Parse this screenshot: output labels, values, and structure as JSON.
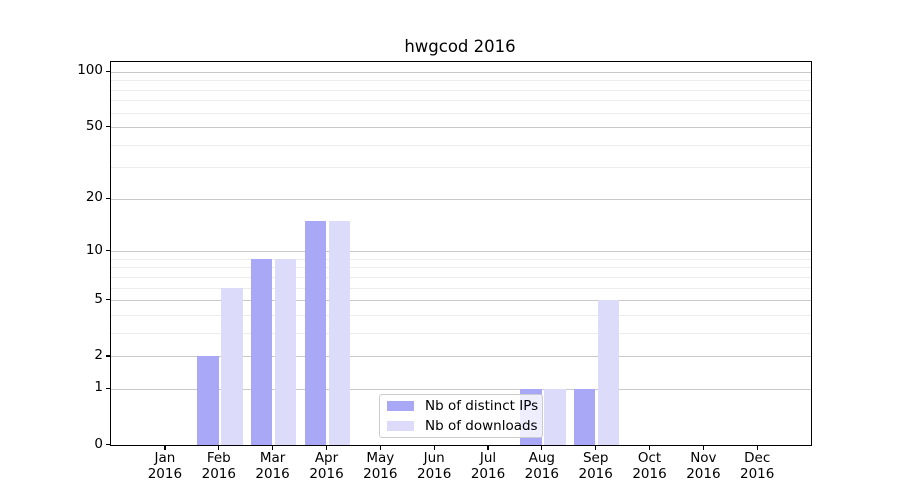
{
  "chart_data": {
    "type": "bar",
    "title": "hwgcod 2016",
    "categories": [
      "Jan",
      "Feb",
      "Mar",
      "Apr",
      "May",
      "Jun",
      "Jul",
      "Aug",
      "Sep",
      "Oct",
      "Nov",
      "Dec"
    ],
    "year_label": "2016",
    "series": [
      {
        "name": "Nb of distinct IPs",
        "color": "#a8a8f7",
        "values": [
          0,
          2,
          9,
          15,
          0,
          0,
          0,
          1,
          1,
          0,
          0,
          0
        ]
      },
      {
        "name": "Nb of downloads",
        "color": "#dcdcfa",
        "values": [
          0,
          6,
          9,
          15,
          0,
          0,
          0,
          1,
          5,
          0,
          0,
          0
        ]
      }
    ],
    "xlabel": "",
    "ylabel": "",
    "y_scale": "log1p",
    "y_ticks": [
      0,
      1,
      2,
      5,
      10,
      20,
      50,
      100
    ],
    "y_minor_gridlines": [
      3,
      4,
      6,
      7,
      8,
      9,
      30,
      40,
      60,
      70,
      80,
      90
    ],
    "ylim": [
      0,
      113
    ],
    "xlim_categories": [
      -1.02,
      11.98
    ],
    "grid": "horizontal",
    "legend_position": "lower center",
    "bar_colors": {
      "distinct_ips": "#a8a8f7",
      "downloads": "#dcdcfa"
    },
    "grid_colors": {
      "major": "#c9c9c9",
      "minor": "#ececec"
    }
  }
}
